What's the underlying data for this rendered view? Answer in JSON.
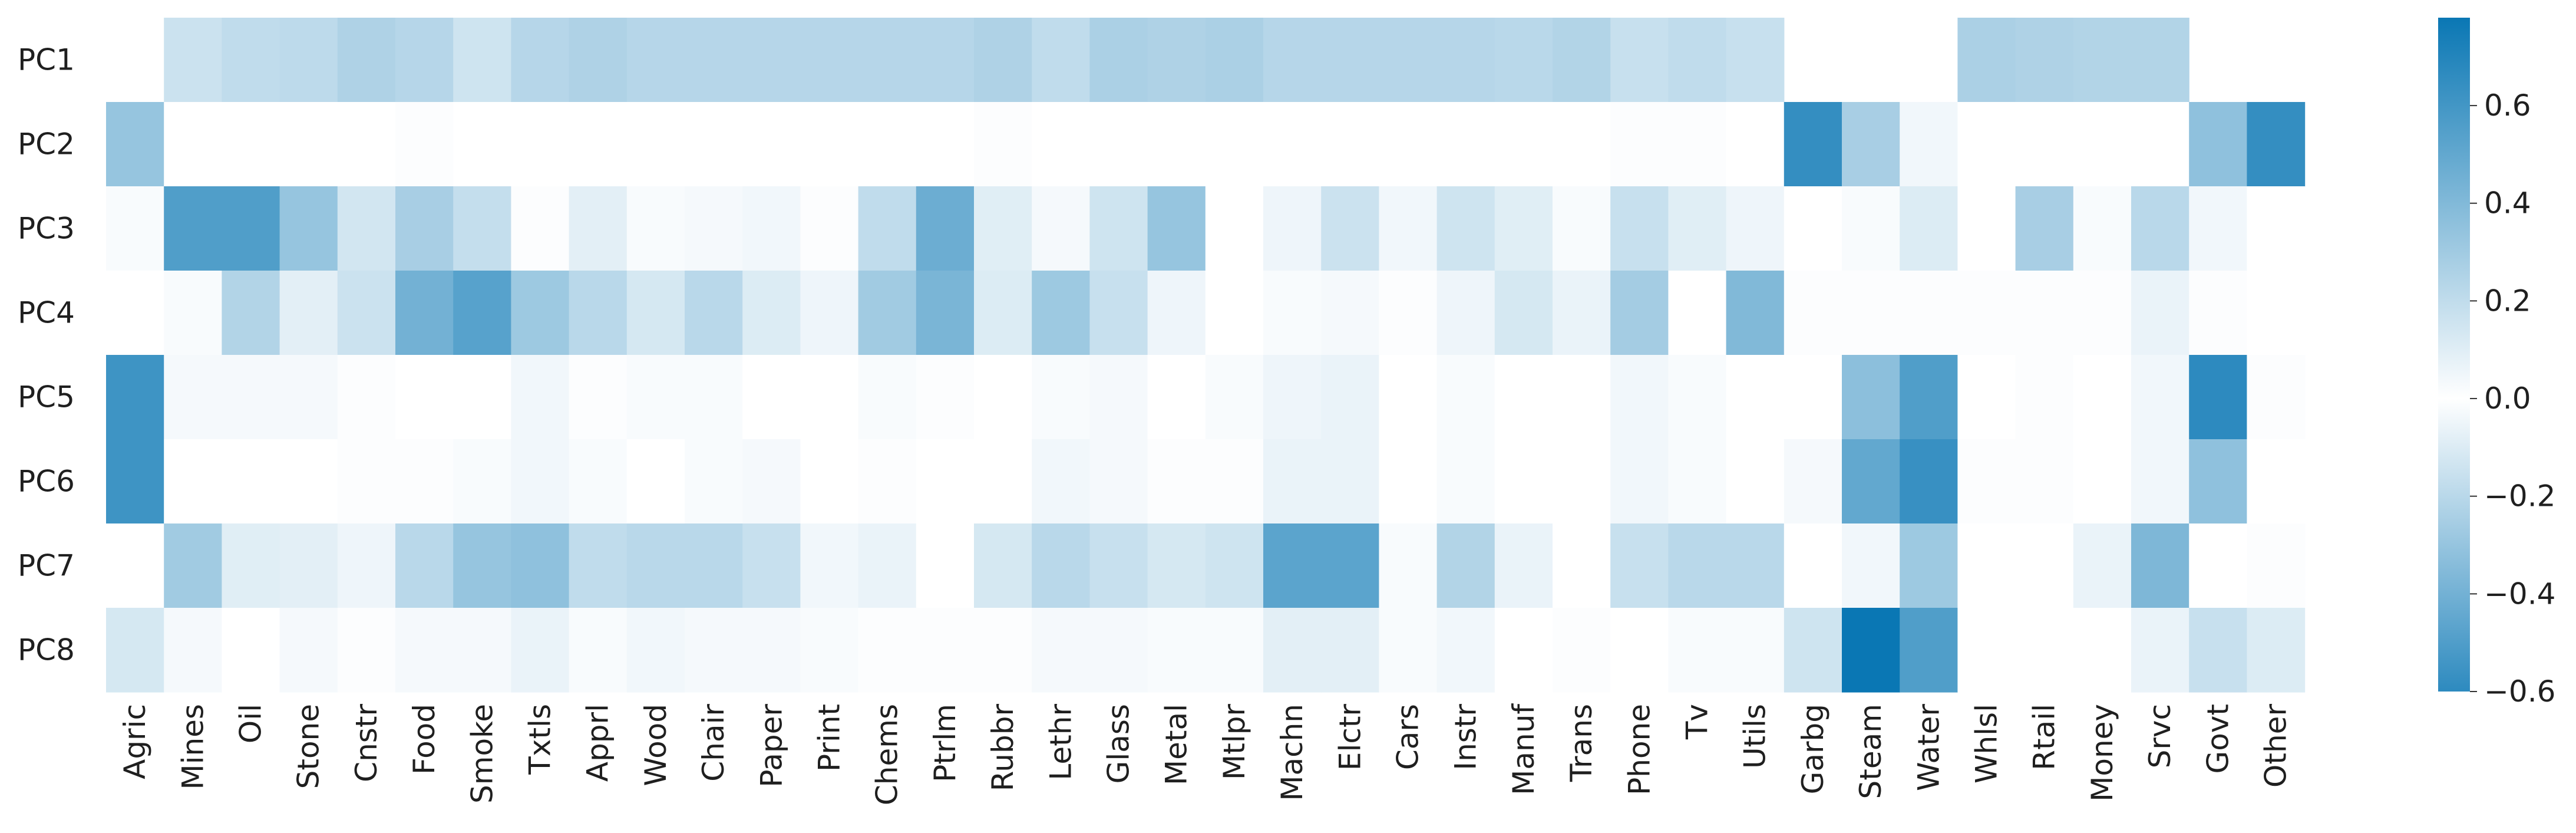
{
  "chart_data": {
    "type": "heatmap",
    "rows": [
      "PC1",
      "PC2",
      "PC3",
      "PC4",
      "PC5",
      "PC6",
      "PC7",
      "PC8"
    ],
    "columns": [
      "Agric",
      "Mines",
      "Oil",
      "Stone",
      "Cnstr",
      "Food",
      "Smoke",
      "Txtls",
      "Apprl",
      "Wood",
      "Chair",
      "Paper",
      "Print",
      "Chems",
      "Ptrlm",
      "Rubbr",
      "Lethr",
      "Glass",
      "Metal",
      "Mtlpr",
      "Machn",
      "Elctr",
      "Cars",
      "Instr",
      "Manuf",
      "Trans",
      "Phone",
      "Tv",
      "Utils",
      "Garbg",
      "Steam",
      "Water",
      "Whlsl",
      "Rtail",
      "Money",
      "Srvc",
      "Govt",
      "Other"
    ],
    "values": [
      [
        0.0,
        -0.15,
        -0.18,
        -0.19,
        -0.23,
        -0.21,
        -0.14,
        -0.21,
        -0.23,
        -0.21,
        -0.21,
        -0.21,
        -0.21,
        -0.21,
        -0.21,
        -0.23,
        -0.18,
        -0.24,
        -0.23,
        -0.24,
        -0.21,
        -0.21,
        -0.21,
        -0.21,
        -0.2,
        -0.22,
        -0.16,
        -0.18,
        -0.16,
        null,
        null,
        null,
        -0.24,
        -0.23,
        -0.22,
        -0.22,
        null,
        null
      ],
      [
        -0.3,
        0.0,
        0.0,
        0.0,
        0.0,
        -0.01,
        0.0,
        0.0,
        0.0,
        0.0,
        0.0,
        0.0,
        0.0,
        0.0,
        0.0,
        -0.01,
        0.0,
        0.0,
        0.0,
        0.0,
        0.0,
        0.0,
        0.0,
        0.0,
        0.0,
        0.0,
        -0.01,
        -0.01,
        0.0,
        -0.58,
        -0.25,
        -0.04,
        0.0,
        0.0,
        0.0,
        0.0,
        -0.32,
        -0.58
      ],
      [
        -0.02,
        -0.5,
        -0.5,
        -0.3,
        -0.13,
        -0.25,
        -0.17,
        -0.01,
        -0.08,
        -0.02,
        -0.03,
        -0.04,
        -0.01,
        -0.18,
        -0.42,
        -0.09,
        -0.03,
        -0.14,
        -0.3,
        0.0,
        -0.05,
        -0.15,
        -0.04,
        -0.14,
        -0.09,
        -0.02,
        -0.16,
        -0.09,
        -0.05,
        0.0,
        -0.02,
        -0.1,
        0.0,
        -0.25,
        -0.02,
        -0.2,
        -0.04,
        0.0
      ],
      [
        0.0,
        -0.02,
        -0.22,
        -0.08,
        -0.15,
        -0.4,
        -0.48,
        -0.28,
        -0.2,
        -0.12,
        -0.2,
        -0.1,
        -0.05,
        -0.27,
        -0.38,
        -0.1,
        -0.28,
        -0.16,
        -0.05,
        0.0,
        -0.02,
        -0.03,
        -0.01,
        -0.05,
        -0.12,
        -0.06,
        -0.26,
        0.0,
        -0.36,
        -0.01,
        -0.01,
        -0.01,
        -0.01,
        -0.01,
        -0.01,
        -0.06,
        -0.01,
        0.0
      ],
      [
        -0.55,
        -0.03,
        -0.03,
        -0.03,
        -0.01,
        0.0,
        0.0,
        -0.04,
        -0.01,
        -0.02,
        -0.02,
        0.0,
        0.0,
        -0.02,
        -0.01,
        0.0,
        -0.02,
        -0.03,
        0.0,
        -0.02,
        -0.05,
        -0.06,
        0.0,
        -0.02,
        0.0,
        0.0,
        -0.04,
        -0.02,
        0.0,
        0.0,
        -0.33,
        -0.5,
        0.0,
        -0.01,
        0.0,
        -0.04,
        -0.6,
        -0.01
      ],
      [
        -0.55,
        0.0,
        0.0,
        0.0,
        -0.01,
        -0.01,
        -0.02,
        -0.04,
        -0.02,
        0.0,
        -0.02,
        -0.03,
        0.0,
        -0.01,
        0.0,
        0.0,
        -0.04,
        -0.03,
        -0.01,
        -0.01,
        -0.06,
        -0.06,
        0.0,
        -0.02,
        0.0,
        0.0,
        -0.04,
        -0.02,
        0.0,
        -0.03,
        -0.45,
        -0.57,
        -0.01,
        -0.01,
        0.0,
        -0.04,
        -0.32,
        0.0
      ],
      [
        0.0,
        -0.27,
        -0.09,
        -0.08,
        -0.05,
        -0.2,
        -0.3,
        -0.32,
        -0.18,
        -0.2,
        -0.2,
        -0.16,
        -0.04,
        -0.06,
        0.0,
        -0.12,
        -0.2,
        -0.16,
        -0.12,
        -0.14,
        -0.47,
        -0.47,
        -0.02,
        -0.22,
        -0.06,
        0.0,
        -0.16,
        -0.2,
        -0.2,
        0.0,
        -0.04,
        -0.28,
        0.0,
        0.0,
        -0.06,
        -0.37,
        0.0,
        -0.01
      ],
      [
        -0.12,
        -0.03,
        0.0,
        -0.03,
        -0.01,
        -0.03,
        -0.03,
        -0.06,
        -0.02,
        -0.04,
        -0.03,
        -0.03,
        -0.02,
        -0.01,
        -0.01,
        -0.01,
        -0.03,
        -0.03,
        -0.02,
        -0.02,
        -0.08,
        -0.08,
        -0.02,
        -0.04,
        0.0,
        -0.01,
        0.0,
        -0.02,
        -0.02,
        -0.14,
        0.7,
        -0.5,
        0.0,
        0.0,
        0.0,
        -0.06,
        -0.16,
        -0.1
      ]
    ],
    "colorbar": {
      "ticks": [
        "0.6",
        "0.4",
        "0.2",
        "0.0",
        "−0.2",
        "−0.4",
        "−0.6"
      ],
      "vmin": -0.6,
      "vmax": 0.78
    },
    "colors": {
      "dark": "#0a77b4",
      "light": "#ffffff"
    }
  }
}
